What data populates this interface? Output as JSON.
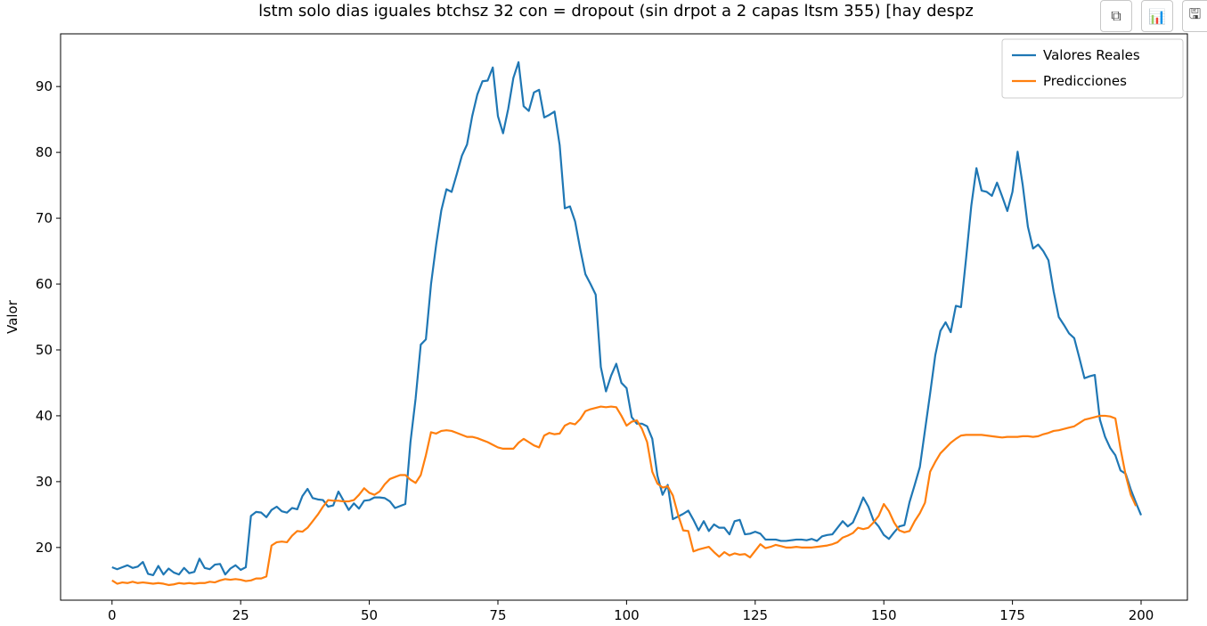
{
  "chart_data": {
    "type": "line",
    "title": "lstm solo dias iguales btchsz 32 con = dropout (sin drpot a 2 capas ltsm 355) [hay despz",
    "xlabel": "",
    "ylabel": "Valor",
    "xlim": [
      -10,
      209
    ],
    "ylim": [
      12,
      98
    ],
    "xticks": [
      "0",
      "25",
      "50",
      "75",
      "100",
      "125",
      "150",
      "175",
      "200"
    ],
    "yticks": [
      "20",
      "30",
      "40",
      "50",
      "60",
      "70",
      "80",
      "90"
    ],
    "legend_position": "top-right",
    "series": [
      {
        "name": "Valores Reales",
        "color": "#1f77b4",
        "values": [
          17,
          16.7,
          17,
          17.3,
          16.9,
          17.1,
          17.8,
          16,
          15.8,
          17.2,
          15.9,
          16.8,
          16.2,
          15.9,
          16.9,
          16.1,
          16.3,
          18.3,
          16.9,
          16.7,
          17.4,
          17.5,
          15.9,
          16.8,
          17.3,
          16.6,
          17,
          24.8,
          25.4,
          25.3,
          24.6,
          25.7,
          26.2,
          25.5,
          25.3,
          26,
          25.8,
          27.8,
          28.9,
          27.5,
          27.3,
          27.2,
          26.2,
          26.4,
          28.5,
          27.1,
          25.7,
          26.7,
          25.9,
          27.1,
          27.2,
          27.6,
          27.6,
          27.5,
          27,
          26,
          26.3,
          26.6,
          36,
          42.6,
          50.8,
          51.6,
          60,
          66,
          71.2,
          74.4,
          74,
          76.7,
          79.5,
          81.2,
          85.5,
          88.8,
          90.8,
          90.9,
          92.9,
          85.5,
          82.9,
          86.6,
          91.3,
          93.7,
          87,
          86.3,
          89.1,
          89.5,
          85.3,
          85.7,
          86.2,
          81.1,
          71.5,
          71.8,
          69.5,
          65.3,
          61.5,
          60,
          58.4,
          47.4,
          43.7,
          46.1,
          47.9,
          45,
          44.2,
          39.8,
          38.8,
          38.8,
          38.4,
          36.5,
          30.9,
          28,
          29.5,
          24.3,
          24.7,
          25.1,
          25.6,
          24.2,
          22.6,
          24,
          22.5,
          23.5,
          23,
          23,
          22,
          24,
          24.2,
          22,
          22.1,
          22.4,
          22.1,
          21.2,
          21.2,
          21.2,
          21,
          21,
          21.1,
          21.2,
          21.2,
          21.1,
          21.3,
          21,
          21.7,
          21.9,
          22,
          23,
          24,
          23.2,
          23.8,
          25.6,
          27.6,
          26.2,
          24.1,
          23.2,
          21.9,
          21.3,
          22.3,
          23.2,
          23.4,
          26.9,
          29.5,
          32.2,
          37.8,
          43.4,
          49.2,
          52.9,
          54.2,
          52.7,
          56.7,
          56.5,
          64,
          71.9,
          77.6,
          74.2,
          74,
          73.4,
          75.4,
          73.3,
          71.1,
          74,
          80.1,
          75,
          68.7,
          65.4,
          66,
          65,
          63.6,
          58.9,
          55,
          53.8,
          52.5,
          51.8,
          48.8,
          45.7,
          46,
          46.2,
          39.4,
          36.8,
          35.1,
          34,
          31.7,
          31.2,
          28.8,
          26.8,
          24.9
        ]
      },
      {
        "name": "Predicciones",
        "color": "#ff7f0e",
        "values": [
          15,
          14.5,
          14.7,
          14.6,
          14.8,
          14.6,
          14.7,
          14.6,
          14.5,
          14.6,
          14.5,
          14.3,
          14.4,
          14.6,
          14.5,
          14.6,
          14.5,
          14.6,
          14.6,
          14.8,
          14.7,
          15,
          15.2,
          15.1,
          15.2,
          15.1,
          14.9,
          15,
          15.3,
          15.3,
          15.6,
          20.3,
          20.8,
          20.9,
          20.8,
          21.8,
          22.5,
          22.4,
          23,
          24,
          25,
          26.2,
          27.2,
          27.1,
          27.1,
          27,
          27,
          27.2,
          28,
          29,
          28.3,
          28,
          28.5,
          29.6,
          30.4,
          30.7,
          31,
          31,
          30.3,
          29.8,
          31,
          34,
          37.5,
          37.3,
          37.7,
          37.8,
          37.7,
          37.4,
          37.1,
          36.8,
          36.8,
          36.6,
          36.3,
          36,
          35.6,
          35.2,
          35,
          35,
          35,
          35.9,
          36.5,
          36,
          35.5,
          35.2,
          37,
          37.4,
          37.2,
          37.3,
          38.5,
          38.9,
          38.7,
          39.5,
          40.7,
          41,
          41.2,
          41.4,
          41.3,
          41.4,
          41.3,
          40,
          38.5,
          39.1,
          39.3,
          38,
          36,
          31.5,
          29.7,
          29.1,
          29.3,
          27.9,
          25,
          22.6,
          22.5,
          19.4,
          19.7,
          19.9,
          20.1,
          19.3,
          18.6,
          19.3,
          18.8,
          19.1,
          18.9,
          19,
          18.5,
          19.5,
          20.5,
          19.9,
          20.1,
          20.4,
          20.2,
          20,
          20,
          20.1,
          20,
          20,
          20,
          20.1,
          20.2,
          20.3,
          20.5,
          20.8,
          21.5,
          21.8,
          22.2,
          23,
          22.8,
          23,
          23.8,
          24.8,
          26.6,
          25.5,
          23.8,
          22.6,
          22.3,
          22.5,
          24,
          25.2,
          26.8,
          31.5,
          33,
          34.3,
          35.1,
          35.9,
          36.5,
          37,
          37.1,
          37.1,
          37.1,
          37.1,
          37,
          36.9,
          36.8,
          36.7,
          36.8,
          36.8,
          36.8,
          36.9,
          36.9,
          36.8,
          36.9,
          37.2,
          37.4,
          37.7,
          37.8,
          38,
          38.2,
          38.4,
          38.9,
          39.4,
          39.6,
          39.8,
          40,
          40,
          39.9,
          39.6,
          35,
          31,
          28,
          26.3
        ]
      }
    ]
  },
  "toolbar": {
    "copy_icon": "copy-icon",
    "chart_icon": "bar-chart-icon",
    "save_icon": "save-icon"
  }
}
